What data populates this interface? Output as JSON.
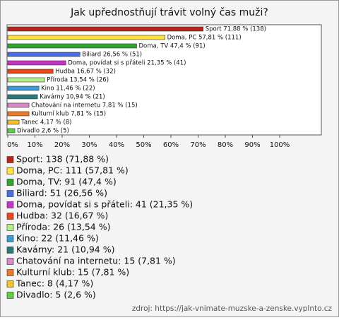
{
  "chart_data": {
    "type": "hbar",
    "title": "Jak upřednostňují trávit volný čas muži?",
    "categories": [
      "Sport",
      "Doma, PC",
      "Doma, TV",
      "Biliard",
      "Doma, povídat si s přáteli",
      "Hudba",
      "Příroda",
      "Kino",
      "Kavárny",
      "Chatování na internetu",
      "Kulturní klub",
      "Tanec",
      "Divadlo"
    ],
    "values": [
      71.88,
      57.81,
      47.4,
      26.56,
      21.35,
      16.67,
      13.54,
      11.46,
      10.94,
      7.81,
      7.81,
      4.17,
      2.6
    ],
    "value_labels": [
      "Sport 71,88 % (138)",
      "Doma, PC 57,81 % (111)",
      "Doma, TV 47,4 % (91)",
      "Biliard 26,56 % (51)",
      "Doma, povídat si s přáteli 21,35 % (41)",
      "Hudba 16,67 % (32)",
      "Příroda 13,54 % (26)",
      "Kino 11,46 % (22)",
      "Kavárny 10,94 % (21)",
      "Chatování na internetu 7,81 % (15)",
      "Kulturní klub 7,81 % (15)",
      "Tanec 4,17 % (8)",
      "Divadlo 2,6 % (5)"
    ],
    "legend_labels": [
      "Sport: 138 (71,88 %)",
      "Doma, PC: 111 (57,81 %)",
      "Doma, TV: 91 (47,4 %)",
      "Biliard: 51 (26,56 %)",
      "Doma, povídat si s přáteli: 41 (21,35 %)",
      "Hudba: 32 (16,67 %)",
      "Příroda: 26 (13,54 %)",
      "Kino: 22 (11,46 %)",
      "Kavárny: 21 (10,94 %)",
      "Chatování na internetu: 15 (7,81 %)",
      "Kulturní klub: 15 (7,81 %)",
      "Tanec: 8 (4,17 %)",
      "Divadlo: 5 (2,6 %)"
    ],
    "colors": [
      "#b8241c",
      "#ffe23a",
      "#2ea52e",
      "#4a6ee0",
      "#c633c6",
      "#e8461a",
      "#b4f08a",
      "#3a9ad6",
      "#2a7a7a",
      "#d98ac9",
      "#ec7a26",
      "#f7c22a",
      "#5ccf48"
    ],
    "xlim": [
      0,
      100
    ],
    "xticks": [
      {
        "value": 0,
        "label": "0%"
      },
      {
        "value": 10,
        "label": "10%"
      },
      {
        "value": 20,
        "label": "20%"
      },
      {
        "value": 30,
        "label": "30%"
      },
      {
        "value": 40,
        "label": "40%"
      },
      {
        "value": 50,
        "label": "50%"
      },
      {
        "value": 60,
        "label": "60%"
      },
      {
        "value": 70,
        "label": "70%"
      },
      {
        "value": 80,
        "label": "80%"
      },
      {
        "value": 90,
        "label": "90%"
      },
      {
        "value": 100,
        "label": "100%"
      }
    ],
    "source": "zdroj: https://jak-vnimate-muzske-a-zenske.vyplnto.cz"
  }
}
